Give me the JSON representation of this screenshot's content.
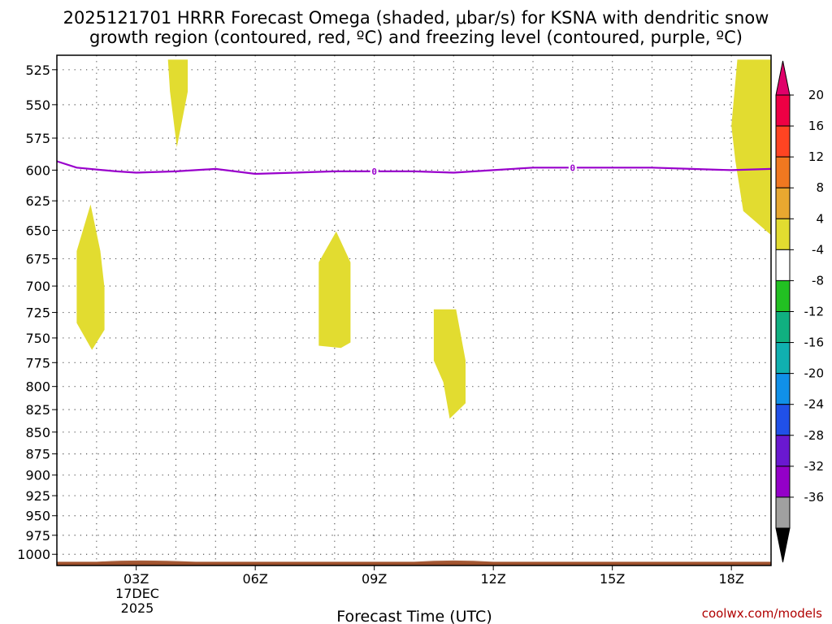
{
  "chart_data": {
    "type": "heatmap",
    "title_lines": [
      "2025121701 HRRR Forecast Omega (shaded, μbar/s) for KSNA with dendritic snow",
      "growth region (contoured, red, ºC) and freezing level (contoured, purple, ºC)"
    ],
    "xlabel": "Forecast Time (UTC)",
    "x_ticks": [
      "03Z",
      "06Z",
      "09Z",
      "12Z",
      "15Z",
      "18Z"
    ],
    "x_date_label": [
      "17DEC",
      "2025"
    ],
    "x_range_hours": [
      1,
      19
    ],
    "y_levels": [
      525,
      550,
      575,
      600,
      625,
      650,
      675,
      700,
      725,
      750,
      775,
      800,
      825,
      850,
      875,
      900,
      925,
      950,
      975,
      1000
    ],
    "y_range_mb": [
      515,
      1015
    ],
    "y_scale": "log-pressure",
    "grid": "dotted",
    "colorbar": {
      "labels": [
        "20",
        "16",
        "12",
        "8",
        "4",
        "-4",
        "-8",
        "-12",
        "-16",
        "-20",
        "-24",
        "-28",
        "-32",
        "-36"
      ],
      "colors": [
        "#ee0044",
        "#ff4422",
        "#f07820",
        "#e8a830",
        "#e2dc30",
        "#ffffff",
        "#22c022",
        "#10b080",
        "#10b0b0",
        "#1090e8",
        "#2050e8",
        "#6a18d0",
        "#9400c8",
        "#a0a0a0"
      ],
      "top_arrow_color": "#e0006a",
      "bottom_arrow_color": "#000000"
    },
    "omega_regions": [
      {
        "value_range": "4 to 8",
        "color": "#e2dc30",
        "hour_range": [
          3.8,
          4.3
        ],
        "mb_range": [
          518,
          582
        ]
      },
      {
        "value_range": "4 to 8",
        "color": "#e2dc30",
        "hour_range": [
          1.5,
          2.2
        ],
        "mb_range": [
          628,
          762
        ]
      },
      {
        "value_range": "4 to 8",
        "color": "#e2dc30",
        "hour_range": [
          7.6,
          8.4
        ],
        "mb_range": [
          651,
          760
        ]
      },
      {
        "value_range": "4 to 8",
        "color": "#e2dc30",
        "hour_range": [
          10.5,
          11.3
        ],
        "mb_range": [
          722,
          835
        ]
      },
      {
        "value_range": "4 to 8",
        "color": "#e2dc30",
        "hour_range": [
          18.0,
          19.0
        ],
        "mb_range": [
          518,
          654
        ]
      }
    ],
    "freezing_level": {
      "contour_value": "0",
      "color": "#9900cc",
      "points": [
        [
          1.0,
          593
        ],
        [
          1.5,
          598
        ],
        [
          2.5,
          601
        ],
        [
          3.0,
          602
        ],
        [
          4.0,
          601
        ],
        [
          5.0,
          599
        ],
        [
          6.0,
          603
        ],
        [
          7.0,
          602
        ],
        [
          8.0,
          601
        ],
        [
          9.0,
          601
        ],
        [
          10.0,
          601
        ],
        [
          11.0,
          602
        ],
        [
          12.0,
          600
        ],
        [
          13.0,
          598
        ],
        [
          14.0,
          598
        ],
        [
          15.0,
          598
        ],
        [
          16.0,
          598
        ],
        [
          17.0,
          599
        ],
        [
          18.0,
          600
        ],
        [
          19.0,
          599
        ]
      ],
      "label_hours": [
        9.0,
        14.0
      ]
    },
    "terrain": {
      "color": "#a0522d",
      "mb_level": 1010
    }
  },
  "watermark": "coolwx.com/models"
}
